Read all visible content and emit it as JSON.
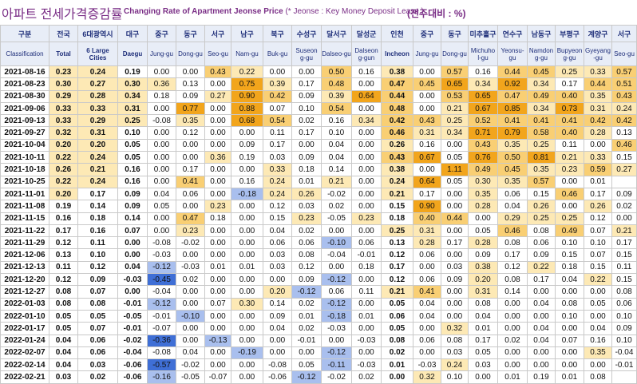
{
  "header": {
    "title_kr": "아파트 전세가격증감률",
    "title_en": "Changing Rate of Apartment Jeonse Price",
    "title_note": "(* Jeonse : Key Money Deposit Lease )",
    "unit": "(전주대비 : %)"
  },
  "colors": {
    "high": "#f2a51c",
    "mid": "#f9cf74",
    "low": "#fde9b5",
    "neg_strong": "#3f6fd6",
    "neg_mid": "#a9bfee",
    "neg_light": "#dce5f8",
    "header_bg": "#e8edf7",
    "header_text": "#1f2f7a",
    "title_text": "#7a2e86"
  },
  "columns": [
    {
      "kr": "구분",
      "en": "Classification"
    },
    {
      "kr": "전국",
      "en": "Total"
    },
    {
      "kr": "6대광역시",
      "en": "6 Large Cities"
    },
    {
      "kr": "대구",
      "en": "Daegu"
    },
    {
      "kr": "중구",
      "en": "Jung-gu"
    },
    {
      "kr": "동구",
      "en": "Dong-gu"
    },
    {
      "kr": "서구",
      "en": "Seo-gu"
    },
    {
      "kr": "남구",
      "en": "Nam-gu"
    },
    {
      "kr": "북구",
      "en": "Buk-gu"
    },
    {
      "kr": "수성구",
      "en": "Suseon g-gu"
    },
    {
      "kr": "달서구",
      "en": "Dalseo-gu"
    },
    {
      "kr": "달성군",
      "en": "Dalseon g-gun"
    },
    {
      "kr": "인천",
      "en": "Incheon"
    },
    {
      "kr": "중구",
      "en": "Jung-gu"
    },
    {
      "kr": "동구",
      "en": "Dong-gu"
    },
    {
      "kr": "미추홀구",
      "en": "Michuho l-gu"
    },
    {
      "kr": "연수구",
      "en": "Yeonsu-gu"
    },
    {
      "kr": "남동구",
      "en": "Namdon g-gu"
    },
    {
      "kr": "부평구",
      "en": "Bupyeon g-gu"
    },
    {
      "kr": "계양구",
      "en": "Gyeyang -gu"
    },
    {
      "kr": "서구",
      "en": "Seo-gu"
    }
  ],
  "chart_data": {
    "type": "table",
    "rows": [
      {
        "date": "2021-08-16",
        "values": [
          "0.23",
          "0.24",
          "0.19",
          "0.00",
          "0.00",
          "0.43",
          "0.22",
          "0.00",
          "0.00",
          "0.50",
          "0.16",
          "0.38",
          "0.00",
          "0.57",
          "0.16",
          "0.44",
          "0.45",
          "0.25",
          "0.33",
          "0.57"
        ]
      },
      {
        "date": "2021-08-23",
        "values": [
          "0.30",
          "0.27",
          "0.30",
          "0.36",
          "0.13",
          "0.00",
          "0.75",
          "0.39",
          "0.17",
          "0.48",
          "0.00",
          "0.47",
          "0.45",
          "0.65",
          "0.34",
          "0.92",
          "0.34",
          "0.17",
          "0.44",
          "0.51"
        ]
      },
      {
        "date": "2021-08-30",
        "values": [
          "0.29",
          "0.28",
          "0.34",
          "0.18",
          "0.09",
          "0.27",
          "0.90",
          "0.42",
          "0.09",
          "0.39",
          "0.64",
          "0.44",
          "0.00",
          "0.53",
          "0.65",
          "0.47",
          "0.49",
          "0.40",
          "0.35",
          "0.43"
        ]
      },
      {
        "date": "2021-09-06",
        "values": [
          "0.33",
          "0.33",
          "0.31",
          "0.00",
          "0.77",
          "0.00",
          "0.88",
          "0.07",
          "0.10",
          "0.54",
          "0.00",
          "0.48",
          "0.00",
          "0.21",
          "0.67",
          "0.85",
          "0.34",
          "0.73",
          "0.31",
          "0.24"
        ]
      },
      {
        "date": "2021-09-13",
        "values": [
          "0.33",
          "0.29",
          "0.25",
          "-0.08",
          "0.35",
          "0.00",
          "0.68",
          "0.54",
          "0.02",
          "0.16",
          "0.34",
          "0.42",
          "0.43",
          "0.25",
          "0.52",
          "0.41",
          "0.41",
          "0.41",
          "0.42",
          "0.42"
        ]
      },
      {
        "date": "2021-09-27",
        "values": [
          "0.32",
          "0.31",
          "0.10",
          "0.00",
          "0.12",
          "0.00",
          "0.00",
          "0.11",
          "0.17",
          "0.10",
          "0.00",
          "0.46",
          "0.31",
          "0.34",
          "0.71",
          "0.79",
          "0.58",
          "0.40",
          "0.28",
          "0.13"
        ]
      },
      {
        "date": "2021-10-04",
        "values": [
          "0.20",
          "0.20",
          "0.05",
          "0.00",
          "0.00",
          "0.00",
          "0.09",
          "0.17",
          "0.00",
          "0.04",
          "0.00",
          "0.26",
          "0.16",
          "0.00",
          "0.43",
          "0.35",
          "0.25",
          "0.11",
          "0.00",
          "0.46"
        ]
      },
      {
        "date": "2021-10-11",
        "values": [
          "0.22",
          "0.24",
          "0.05",
          "0.00",
          "0.00",
          "0.36",
          "0.19",
          "0.03",
          "0.09",
          "0.04",
          "0.00",
          "0.43",
          "0.67",
          "0.05",
          "0.76",
          "0.50",
          "0.81",
          "0.21",
          "0.33",
          "0.15"
        ]
      },
      {
        "date": "2021-10-18",
        "values": [
          "0.26",
          "0.21",
          "0.16",
          "0.00",
          "0.17",
          "0.00",
          "0.00",
          "0.33",
          "0.18",
          "0.14",
          "0.00",
          "0.38",
          "0.00",
          "1.11",
          "0.49",
          "0.45",
          "0.35",
          "0.23",
          "0.59",
          "0.27"
        ]
      },
      {
        "date": "2021-10-25",
        "values": [
          "0.22",
          "0.24",
          "0.16",
          "0.00",
          "0.41",
          "0.00",
          "0.16",
          "0.24",
          "0.01",
          "0.21",
          "0.00",
          "0.24",
          "0.64",
          "0.05",
          "0.30",
          "0.35",
          "0.57",
          "0.00",
          "0.01",
          ""
        ]
      },
      {
        "date": "2021-11-01",
        "values": [
          "0.20",
          "0.17",
          "0.09",
          "0.04",
          "0.06",
          "0.00",
          "-0.18",
          "0.24",
          "0.26",
          "-0.02",
          "0.00",
          "0.21",
          "0.17",
          "0.00",
          "0.35",
          "0.06",
          "0.15",
          "0.46",
          "0.17",
          "0.09"
        ]
      },
      {
        "date": "2021-11-08",
        "values": [
          "0.19",
          "0.14",
          "0.09",
          "0.05",
          "0.00",
          "0.23",
          "0.00",
          "0.12",
          "0.03",
          "0.02",
          "0.00",
          "0.15",
          "0.90",
          "0.00",
          "0.28",
          "0.04",
          "0.26",
          "0.00",
          "0.26",
          "0.02"
        ]
      },
      {
        "date": "2021-11-15",
        "values": [
          "0.16",
          "0.18",
          "0.14",
          "0.00",
          "0.47",
          "0.18",
          "0.00",
          "0.15",
          "0.23",
          "-0.05",
          "0.23",
          "0.18",
          "0.40",
          "0.44",
          "0.00",
          "0.29",
          "0.25",
          "0.25",
          "0.12",
          "0.00"
        ]
      },
      {
        "date": "2021-11-22",
        "values": [
          "0.17",
          "0.16",
          "0.07",
          "0.00",
          "0.23",
          "0.00",
          "0.00",
          "0.04",
          "0.02",
          "0.00",
          "0.00",
          "0.25",
          "0.31",
          "0.00",
          "0.05",
          "0.46",
          "0.08",
          "0.49",
          "0.07",
          "0.21"
        ]
      },
      {
        "date": "2021-11-29",
        "values": [
          "0.12",
          "0.11",
          "0.00",
          "-0.08",
          "-0.02",
          "0.00",
          "0.00",
          "0.06",
          "0.06",
          "-0.10",
          "0.06",
          "0.13",
          "0.28",
          "0.17",
          "0.28",
          "0.08",
          "0.06",
          "0.10",
          "0.10",
          "0.17"
        ]
      },
      {
        "date": "2021-12-06",
        "values": [
          "0.13",
          "0.10",
          "0.00",
          "-0.03",
          "0.00",
          "0.00",
          "0.00",
          "0.03",
          "0.08",
          "-0.04",
          "-0.01",
          "0.12",
          "0.06",
          "0.00",
          "0.09",
          "0.17",
          "0.09",
          "0.15",
          "0.07",
          "0.15"
        ]
      },
      {
        "date": "2021-12-13",
        "values": [
          "0.11",
          "0.12",
          "0.04",
          "-0.12",
          "-0.03",
          "0.01",
          "0.01",
          "0.03",
          "0.12",
          "0.00",
          "0.18",
          "0.17",
          "0.00",
          "0.03",
          "0.38",
          "0.12",
          "0.22",
          "0.18",
          "0.15",
          "0.11"
        ]
      },
      {
        "date": "2021-12-20",
        "values": [
          "0.12",
          "0.09",
          "-0.03",
          "-0.45",
          "0.02",
          "0.00",
          "0.00",
          "0.00",
          "0.09",
          "-0.12",
          "0.00",
          "0.12",
          "0.06",
          "0.09",
          "0.20",
          "0.08",
          "0.17",
          "0.04",
          "0.22",
          "0.15"
        ]
      },
      {
        "date": "2021-12-27",
        "values": [
          "0.08",
          "0.07",
          "0.00",
          "-0.04",
          "0.00",
          "0.00",
          "0.00",
          "0.20",
          "-0.12",
          "0.06",
          "0.11",
          "0.21",
          "0.41",
          "0.00",
          "0.31",
          "0.14",
          "0.00",
          "0.00",
          "0.00",
          "0.08"
        ]
      },
      {
        "date": "2022-01-03",
        "values": [
          "0.08",
          "0.08",
          "-0.01",
          "-0.12",
          "0.00",
          "0.07",
          "0.30",
          "0.14",
          "0.02",
          "-0.12",
          "0.00",
          "0.05",
          "0.04",
          "0.00",
          "0.08",
          "0.00",
          "0.04",
          "0.08",
          "0.05",
          "0.06"
        ]
      },
      {
        "date": "2022-01-10",
        "values": [
          "0.05",
          "0.05",
          "-0.05",
          "-0.01",
          "-0.10",
          "0.00",
          "0.00",
          "0.09",
          "0.01",
          "-0.18",
          "0.01",
          "0.06",
          "0.04",
          "0.00",
          "0.04",
          "0.00",
          "0.00",
          "0.10",
          "0.00",
          "0.10"
        ]
      },
      {
        "date": "2022-01-17",
        "values": [
          "0.05",
          "0.07",
          "-0.01",
          "-0.07",
          "0.00",
          "0.00",
          "0.00",
          "0.04",
          "0.02",
          "-0.03",
          "0.00",
          "0.05",
          "0.00",
          "0.32",
          "0.01",
          "0.00",
          "0.04",
          "0.00",
          "0.04",
          "0.09"
        ]
      },
      {
        "date": "2022-01-24",
        "values": [
          "0.04",
          "0.06",
          "-0.02",
          "-0.36",
          "0.00",
          "-0.13",
          "0.00",
          "0.00",
          "-0.01",
          "0.00",
          "-0.03",
          "0.08",
          "0.06",
          "0.08",
          "0.17",
          "0.02",
          "0.04",
          "0.07",
          "0.16",
          "0.10"
        ]
      },
      {
        "date": "2022-02-07",
        "values": [
          "0.04",
          "0.06",
          "-0.04",
          "-0.08",
          "0.04",
          "0.00",
          "-0.19",
          "0.00",
          "0.00",
          "-0.12",
          "0.00",
          "0.02",
          "0.00",
          "0.03",
          "0.05",
          "0.00",
          "0.00",
          "0.00",
          "0.35",
          "-0.04"
        ]
      },
      {
        "date": "2022-02-14",
        "values": [
          "0.04",
          "0.03",
          "-0.06",
          "-0.57",
          "-0.02",
          "0.00",
          "0.00",
          "-0.08",
          "0.05",
          "-0.11",
          "-0.03",
          "0.01",
          "-0.03",
          "0.24",
          "0.03",
          "0.00",
          "0.00",
          "0.00",
          "0.00",
          "-0.01"
        ]
      },
      {
        "date": "2022-02-21",
        "values": [
          "0.03",
          "0.02",
          "-0.06",
          "-0.16",
          "-0.05",
          "-0.07",
          "0.00",
          "-0.06",
          "-0.12",
          "-0.02",
          "0.02",
          "0.00",
          "0.32",
          "0.10",
          "0.00",
          "0.01",
          "0.19",
          "0.01",
          "0.08",
          ""
        ]
      }
    ]
  }
}
